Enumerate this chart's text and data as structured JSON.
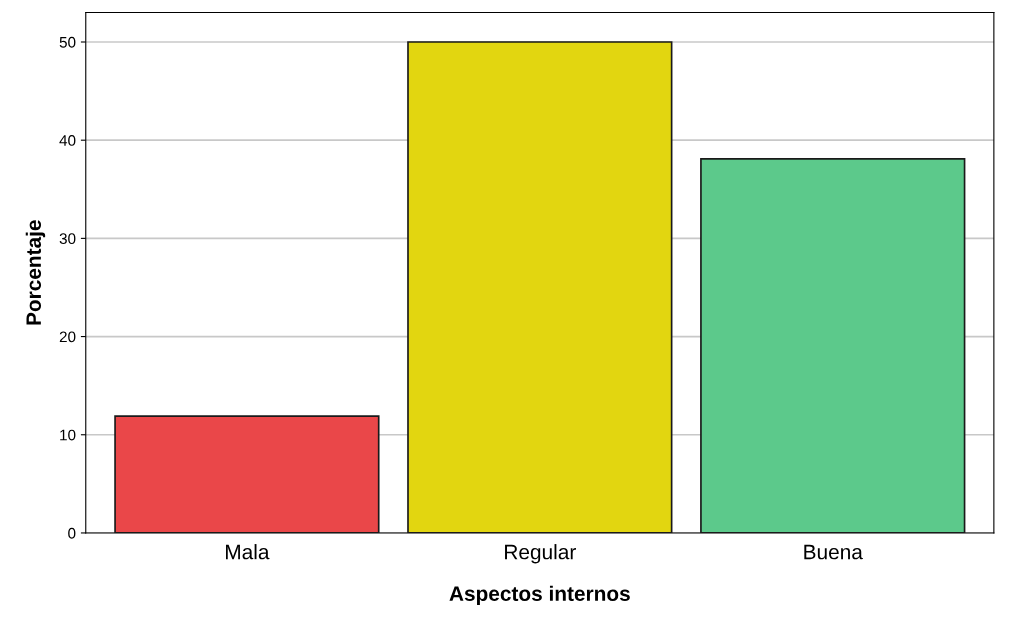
{
  "chart_data": {
    "type": "bar",
    "xlabel": "Aspectos internos",
    "ylabel": "Porcentaje",
    "categories": [
      "Mala",
      "Regular",
      "Buena"
    ],
    "values": [
      11.9,
      50.0,
      38.1
    ],
    "colors": [
      "#ea4749",
      "#e2d610",
      "#5cc98b"
    ],
    "ylim": [
      0,
      53
    ],
    "yticks": [
      0,
      10,
      20,
      30,
      40,
      50
    ],
    "grid": "y"
  }
}
